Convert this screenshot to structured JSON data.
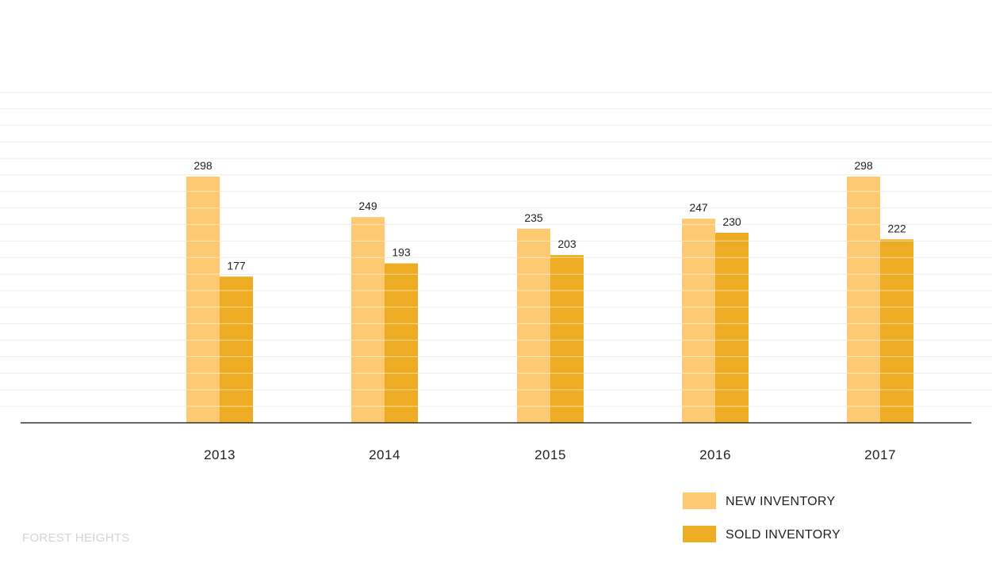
{
  "chart_data": {
    "type": "bar",
    "categories": [
      "2013",
      "2014",
      "2015",
      "2016",
      "2017"
    ],
    "series": [
      {
        "name": "NEW INVENTORY",
        "values": [
          298,
          249,
          235,
          247,
          298
        ],
        "color": "#fdca72"
      },
      {
        "name": "SOLD INVENTORY",
        "values": [
          177,
          193,
          203,
          230,
          222
        ],
        "color": "#eeac25"
      }
    ],
    "title": "",
    "xlabel": "",
    "ylabel": "",
    "ylim": [
      0,
      400
    ],
    "grid": true,
    "legend": "bottom-right"
  },
  "footer": {
    "label": "FOREST HEIGHTS"
  },
  "colors": {
    "grid": "#ececec",
    "axis": "#333333",
    "footer": "#d4d4d4"
  }
}
